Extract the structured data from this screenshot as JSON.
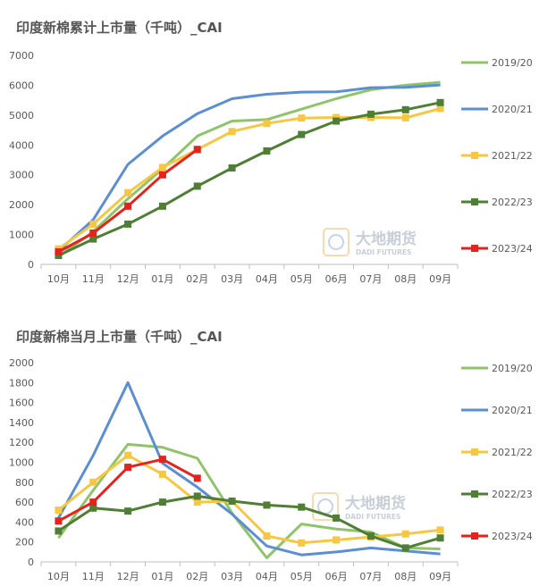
{
  "watermark": {
    "main": "大地期货",
    "sub": "DADI FUTURES"
  },
  "colors": {
    "2019/20": "#8fc46a",
    "2020/21": "#5b8fd1",
    "2021/22": "#f6c744",
    "2022/23": "#4f7f35",
    "2023/24": "#e5231e"
  },
  "chart_data": [
    {
      "type": "line",
      "title": "印度新棉累计上市量（千吨）_CAI",
      "categories": [
        "10月",
        "11月",
        "12月",
        "01月",
        "02月",
        "03月",
        "04月",
        "05月",
        "06月",
        "07月",
        "08月",
        "09月"
      ],
      "ylim": [
        0,
        7000
      ],
      "yticks": [
        "0",
        "1000",
        "2000",
        "3000",
        "4000",
        "5000",
        "6000",
        "7000"
      ],
      "legend": "right",
      "series": [
        {
          "name": "2019/20",
          "marker": "none",
          "values": [
            250,
            1100,
            2200,
            3200,
            4300,
            4800,
            4850,
            5200,
            5550,
            5850,
            6000,
            6100
          ]
        },
        {
          "name": "2020/21",
          "marker": "none",
          "values": [
            450,
            1500,
            3350,
            4300,
            5050,
            5550,
            5700,
            5770,
            5780,
            5920,
            5930,
            6010
          ]
        },
        {
          "name": "2021/22",
          "marker": "square",
          "values": [
            520,
            1350,
            2400,
            3250,
            3850,
            4450,
            4720,
            4900,
            4920,
            4920,
            4910,
            5220
          ]
        },
        {
          "name": "2022/23",
          "marker": "square",
          "values": [
            300,
            850,
            1350,
            1950,
            2620,
            3230,
            3800,
            4350,
            4800,
            5030,
            5180,
            5420
          ]
        },
        {
          "name": "2023/24",
          "marker": "square",
          "values": [
            420,
            1050,
            1950,
            3000,
            3850,
            null,
            null,
            null,
            null,
            null,
            null,
            null
          ]
        }
      ]
    },
    {
      "type": "line",
      "title": "印度新棉当月上市量（千吨）_CAI",
      "categories": [
        "10月",
        "11月",
        "12月",
        "01月",
        "02月",
        "03月",
        "04月",
        "05月",
        "06月",
        "07月",
        "08月",
        "09月"
      ],
      "ylim": [
        0,
        2000
      ],
      "yticks": [
        "0",
        "200",
        "400",
        "600",
        "800",
        "1000",
        "1200",
        "1400",
        "1600",
        "1800",
        "2000"
      ],
      "legend": "right",
      "series": [
        {
          "name": "2019/20",
          "marker": "none",
          "values": [
            240,
            720,
            1180,
            1150,
            1040,
            490,
            40,
            380,
            330,
            300,
            140,
            130
          ]
        },
        {
          "name": "2020/21",
          "marker": "none",
          "values": [
            440,
            1070,
            1800,
            990,
            750,
            480,
            160,
            70,
            100,
            140,
            110,
            80
          ]
        },
        {
          "name": "2021/22",
          "marker": "square",
          "values": [
            520,
            800,
            1070,
            880,
            600,
            610,
            260,
            190,
            220,
            250,
            280,
            320
          ]
        },
        {
          "name": "2022/23",
          "marker": "square",
          "values": [
            310,
            540,
            510,
            600,
            660,
            610,
            570,
            550,
            440,
            260,
            140,
            240
          ]
        },
        {
          "name": "2023/24",
          "marker": "square",
          "values": [
            410,
            600,
            950,
            1030,
            840,
            null,
            null,
            null,
            null,
            null,
            null,
            null
          ]
        }
      ]
    }
  ]
}
